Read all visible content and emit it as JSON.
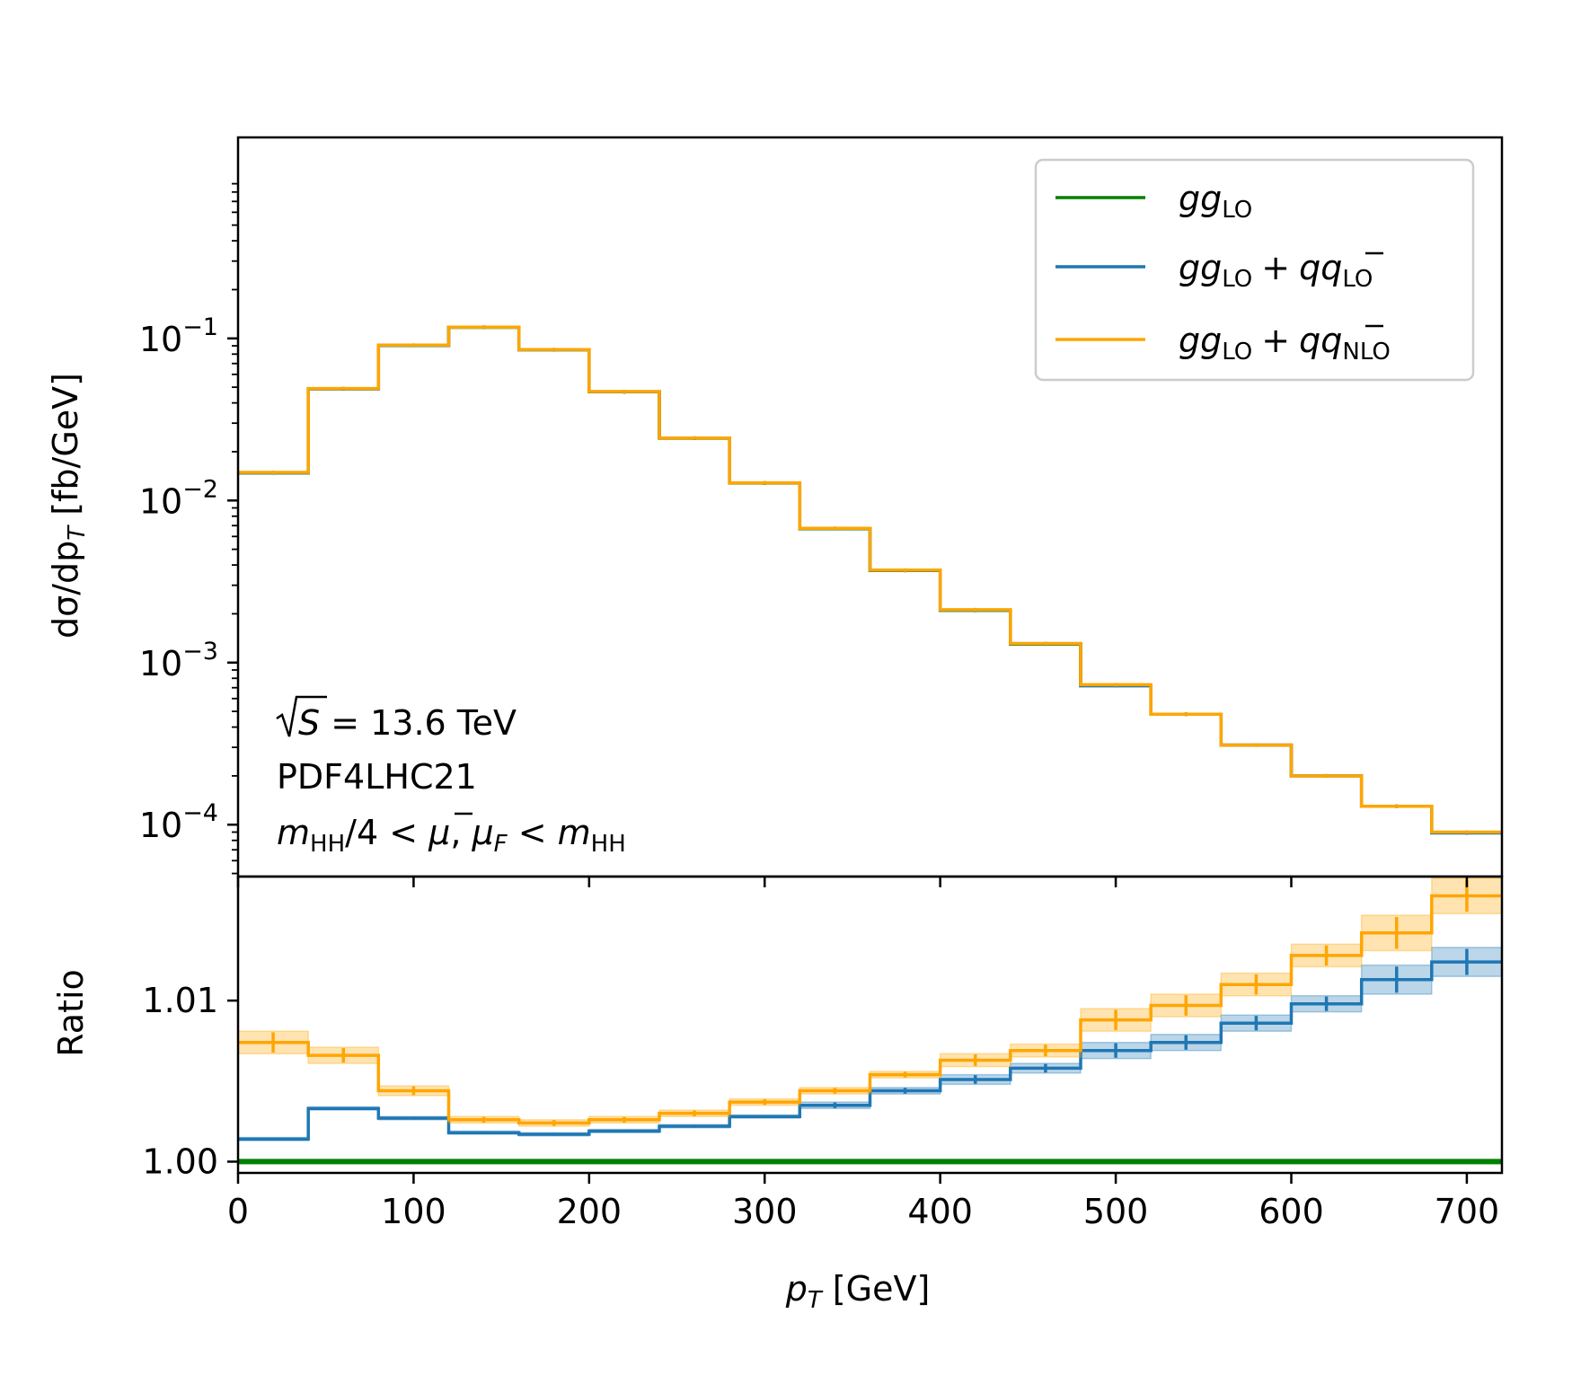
{
  "chart_data": [
    {
      "type": "line",
      "panel": "main",
      "step": true,
      "yscale": "log",
      "ylabel": "dσ/dp_T [fb/GeV]",
      "xlim": [
        0,
        720
      ],
      "ylim_log10": [
        -4.32,
        0.24
      ],
      "x_edges": [
        0,
        40,
        80,
        120,
        160,
        200,
        240,
        280,
        320,
        360,
        400,
        440,
        480,
        520,
        560,
        600,
        640,
        680,
        720
      ],
      "ytick_labels": [
        {
          "value": 0.1,
          "base": "10",
          "exp": "−1"
        },
        {
          "value": 0.01,
          "base": "10",
          "exp": "−2"
        },
        {
          "value": 0.001,
          "base": "10",
          "exp": "−3"
        },
        {
          "value": 0.0001,
          "base": "10",
          "exp": "−4"
        }
      ],
      "series": [
        {
          "key": "gg_lo",
          "color": "#008000",
          "values": [
            0.0148,
            0.0488,
            0.0905,
            0.117,
            0.085,
            0.0468,
            0.0242,
            0.0128,
            0.0067,
            0.0037,
            0.0021,
            0.0013,
            0.00072,
            0.00048,
            0.00031,
            0.0002,
            0.00013,
            8.9e-05
          ]
        },
        {
          "key": "gg_lo_qq_lo",
          "color": "#1f77b4",
          "values": [
            0.01482,
            0.0489,
            0.09067,
            0.11722,
            0.08517,
            0.0469,
            0.02425,
            0.01283,
            0.00672,
            0.00371,
            0.00211,
            0.00131,
            0.00072,
            0.00048,
            0.00031,
            0.0002,
            0.00013,
            8.9e-05
          ]
        },
        {
          "key": "gg_lo_qq_nlo",
          "color": "#ffa500",
          "values": [
            0.0149,
            0.0491,
            0.0909,
            0.1174,
            0.0853,
            0.047,
            0.0243,
            0.01285,
            0.00674,
            0.00372,
            0.00212,
            0.00131,
            0.00073,
            0.00048,
            0.00031,
            0.0002,
            0.00013,
            9e-05
          ]
        }
      ],
      "annotations": {
        "sqrt_s": "S = 13.6 TeV",
        "pdf": "PDF4LHC21"
      }
    },
    {
      "type": "line",
      "panel": "ratio",
      "step": true,
      "ylabel": "Ratio",
      "xlabel": "p_T [GeV]",
      "xlim": [
        0,
        720
      ],
      "ylim": [
        0.9993,
        1.0177
      ],
      "x_edges": [
        0,
        40,
        80,
        120,
        160,
        200,
        240,
        280,
        320,
        360,
        400,
        440,
        480,
        520,
        560,
        600,
        640,
        680,
        720
      ],
      "xtick_values": [
        0,
        100,
        200,
        300,
        400,
        500,
        600,
        700
      ],
      "xtick_labels": [
        "0",
        "100",
        "200",
        "300",
        "400",
        "500",
        "600",
        "700"
      ],
      "ytick_values": [
        1.0,
        1.01
      ],
      "ytick_labels": [
        "1.00",
        "1.01"
      ],
      "series": [
        {
          "key": "gg_lo",
          "color": "#008000",
          "values": [
            1.0,
            1.0,
            1.0,
            1.0,
            1.0,
            1.0,
            1.0,
            1.0,
            1.0,
            1.0,
            1.0,
            1.0,
            1.0,
            1.0,
            1.0,
            1.0,
            1.0,
            1.0
          ]
        },
        {
          "key": "gg_lo_qq_lo",
          "color": "#1f77b4",
          "values": [
            1.0014,
            1.0033,
            1.0027,
            1.0018,
            1.0017,
            1.0019,
            1.0022,
            1.0028,
            1.0035,
            1.0044,
            1.0051,
            1.0058,
            1.0069,
            1.0074,
            1.0086,
            1.0098,
            1.0113,
            1.0124
          ],
          "band": [
            0.0001,
            0.0001,
            0.0001,
            0.0001,
            0.0001,
            0.0001,
            0.0001,
            0.0001,
            0.0002,
            0.0002,
            0.0003,
            0.0003,
            0.0005,
            0.0005,
            0.0005,
            0.0005,
            0.0009,
            0.0009
          ]
        },
        {
          "key": "gg_lo_qq_nlo",
          "color": "#ffa500",
          "values": [
            1.0074,
            1.0066,
            1.0044,
            1.0026,
            1.0024,
            1.0026,
            1.003,
            1.0037,
            1.0044,
            1.0054,
            1.0063,
            1.0069,
            1.0088,
            1.0097,
            1.011,
            1.0128,
            1.0142,
            1.0165
          ],
          "band": [
            0.0007,
            0.0005,
            0.0003,
            0.0002,
            0.0002,
            0.0002,
            0.0002,
            0.0002,
            0.0002,
            0.0002,
            0.0004,
            0.0004,
            0.0007,
            0.0007,
            0.0007,
            0.0007,
            0.0011,
            0.0011
          ]
        }
      ]
    }
  ],
  "legend": {
    "placement": "top-right",
    "entries": [
      {
        "key": "gg_lo",
        "color": "#008000",
        "label": "gg_LO"
      },
      {
        "key": "gg_lo_qq_lo",
        "color": "#1f77b4",
        "label": "gg_LO + qq̄_LO"
      },
      {
        "key": "gg_lo_qq_nlo",
        "color": "#ffa500",
        "label": "gg_LO + qq̄_NLO"
      }
    ]
  },
  "text": {
    "gg": "gg",
    "lo": "LO",
    "nlo": "NLO",
    "plus": "+",
    "qq": "q",
    "qbar": "q",
    "ratio": "Ratio",
    "ylabel_main": "dσ/dp",
    "ylabel_main_sub": "T",
    "ylabel_main_unit": " [fb/GeV]",
    "xlabel_p": "p",
    "xlabel_sub": "T",
    "xlabel_unit": " [GeV]",
    "sqrt_s": "S",
    "sqrt_s_rest": " = 13.6 TeV",
    "pdf": "PDF4LHC21",
    "scale_m": "m",
    "scale_hh": "HH",
    "scale_div": "/4 < ",
    "scale_mu": "μ",
    "scale_comma": ", ",
    "scale_mu2": "μ",
    "scale_f": "F",
    "scale_lt": " < ",
    "scale_m2": "m",
    "scale_hh2": "HH"
  }
}
